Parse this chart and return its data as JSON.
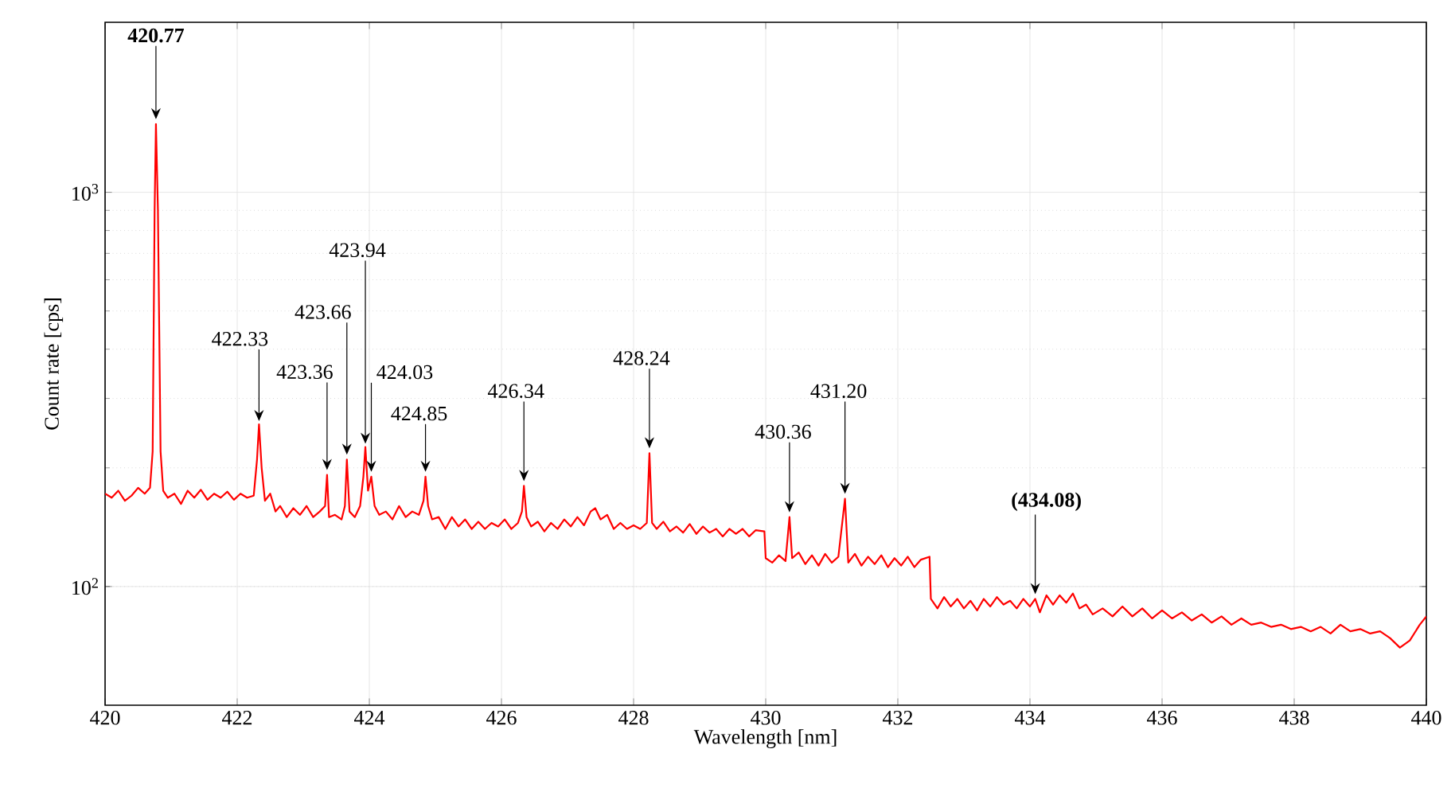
{
  "chart_data": {
    "type": "line",
    "xlabel": "Wavelength [nm]",
    "ylabel": "Count rate [cps]",
    "log": "y",
    "grid": true,
    "marker": "none",
    "line_style": "solid",
    "xlim": [
      420,
      440
    ],
    "ylim": [
      50,
      2700
    ],
    "xticks": [
      420,
      422,
      424,
      426,
      428,
      430,
      432,
      434,
      436,
      438,
      440
    ],
    "yticks": [
      {
        "value": 100,
        "label": "10$^{2}$"
      },
      {
        "value": 1000,
        "label": "10$^{3}$"
      }
    ],
    "series": [
      {
        "color": "#ff0000",
        "x": [
          420.0,
          420.1,
          420.2,
          420.3,
          420.4,
          420.5,
          420.6,
          420.68,
          420.72,
          420.75,
          420.77,
          420.8,
          420.84,
          420.88,
          420.95,
          421.05,
          421.15,
          421.25,
          421.35,
          421.45,
          421.55,
          421.65,
          421.75,
          421.85,
          421.95,
          422.05,
          422.15,
          422.25,
          422.3,
          422.33,
          422.37,
          422.42,
          422.5,
          422.58,
          422.65,
          422.75,
          422.85,
          422.95,
          423.05,
          423.15,
          423.25,
          423.33,
          423.36,
          423.39,
          423.48,
          423.58,
          423.63,
          423.66,
          423.7,
          423.78,
          423.86,
          423.91,
          423.94,
          423.98,
          424.03,
          424.08,
          424.15,
          424.25,
          424.35,
          424.45,
          424.55,
          424.65,
          424.75,
          424.82,
          424.85,
          424.89,
          424.95,
          425.05,
          425.15,
          425.25,
          425.35,
          425.45,
          425.55,
          425.65,
          425.75,
          425.85,
          425.95,
          426.05,
          426.15,
          426.25,
          426.31,
          426.34,
          426.38,
          426.45,
          426.55,
          426.65,
          426.75,
          426.85,
          426.95,
          427.05,
          427.15,
          427.25,
          427.35,
          427.42,
          427.5,
          427.6,
          427.7,
          427.8,
          427.9,
          428.0,
          428.1,
          428.2,
          428.24,
          428.28,
          428.35,
          428.45,
          428.55,
          428.65,
          428.75,
          428.85,
          428.95,
          429.05,
          429.15,
          429.25,
          429.35,
          429.45,
          429.55,
          429.65,
          429.75,
          429.85,
          429.98,
          430.0,
          430.1,
          430.2,
          430.3,
          430.36,
          430.4,
          430.5,
          430.6,
          430.7,
          430.8,
          430.9,
          431.0,
          431.1,
          431.2,
          431.25,
          431.35,
          431.45,
          431.55,
          431.65,
          431.75,
          431.85,
          431.95,
          432.05,
          432.15,
          432.25,
          432.35,
          432.48,
          432.5,
          432.6,
          432.7,
          432.8,
          432.9,
          433.0,
          433.1,
          433.2,
          433.3,
          433.4,
          433.5,
          433.6,
          433.7,
          433.8,
          433.9,
          434.0,
          434.08,
          434.15,
          434.25,
          434.35,
          434.45,
          434.55,
          434.65,
          434.75,
          434.85,
          434.95,
          435.1,
          435.25,
          435.4,
          435.55,
          435.7,
          435.85,
          436.0,
          436.15,
          436.3,
          436.45,
          436.6,
          436.75,
          436.9,
          437.05,
          437.2,
          437.35,
          437.5,
          437.65,
          437.8,
          437.95,
          438.1,
          438.25,
          438.4,
          438.55,
          438.7,
          438.85,
          439.0,
          439.15,
          439.3,
          439.45,
          439.6,
          439.75,
          439.9,
          440.0
        ],
        "values": [
          172,
          168,
          175,
          165,
          170,
          178,
          172,
          178,
          220,
          900,
          1490,
          900,
          220,
          175,
          168,
          172,
          162,
          175,
          168,
          176,
          166,
          172,
          168,
          174,
          166,
          172,
          168,
          170,
          210,
          258,
          200,
          165,
          172,
          155,
          160,
          150,
          158,
          152,
          160,
          150,
          155,
          160,
          192,
          150,
          152,
          148,
          160,
          210,
          155,
          150,
          160,
          190,
          226,
          175,
          190,
          160,
          152,
          155,
          148,
          160,
          150,
          155,
          152,
          165,
          190,
          160,
          148,
          150,
          140,
          150,
          142,
          148,
          140,
          146,
          140,
          145,
          142,
          148,
          140,
          145,
          155,
          180,
          150,
          142,
          146,
          138,
          145,
          140,
          148,
          142,
          150,
          143,
          155,
          158,
          148,
          152,
          140,
          145,
          140,
          143,
          140,
          145,
          218,
          145,
          140,
          146,
          138,
          142,
          137,
          144,
          136,
          142,
          137,
          140,
          134,
          140,
          136,
          140,
          134,
          139,
          138,
          118,
          115,
          120,
          116,
          150,
          118,
          122,
          114,
          120,
          113,
          121,
          115,
          119,
          167,
          115,
          121,
          113,
          119,
          114,
          120,
          112,
          118,
          113,
          119,
          112,
          117,
          119,
          93,
          88,
          94,
          89,
          93,
          88,
          92,
          87,
          93,
          89,
          94,
          90,
          92,
          88,
          93,
          89,
          93,
          86,
          95,
          90,
          95,
          91,
          96,
          88,
          90,
          85,
          88,
          84,
          89,
          84,
          88,
          83,
          87,
          83,
          86,
          82,
          85,
          81,
          84,
          80,
          83,
          80,
          81,
          79,
          80,
          78,
          79,
          77,
          79,
          76,
          80,
          77,
          78,
          76,
          77,
          74,
          70,
          73,
          80,
          84
        ]
      }
    ],
    "annotations": [
      {
        "text": "**420.77**",
        "x": 420.77,
        "y": 1490
      },
      {
        "text": "422.33",
        "x": 422.33,
        "y": 258
      },
      {
        "text": "423.36",
        "x": 423.36,
        "y": 192
      },
      {
        "text": "423.66",
        "x": 423.66,
        "y": 210
      },
      {
        "text": "423.94",
        "x": 423.94,
        "y": 226
      },
      {
        "text": "424.03",
        "x": 424.03,
        "y": 190
      },
      {
        "text": "424.85",
        "x": 424.85,
        "y": 190
      },
      {
        "text": "426.34",
        "x": 426.34,
        "y": 180
      },
      {
        "text": "428.24",
        "x": 428.24,
        "y": 218
      },
      {
        "text": "430.36",
        "x": 430.36,
        "y": 150
      },
      {
        "text": "431.20",
        "x": 431.2,
        "y": 167
      },
      {
        "text": "**(434.08)**",
        "x": 434.08,
        "y": 93
      }
    ]
  }
}
